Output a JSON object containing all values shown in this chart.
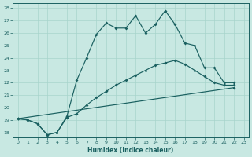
{
  "xlabel": "Humidex (Indice chaleur)",
  "bg_color": "#c8e8e2",
  "line_color": "#1a6060",
  "grid_color": "#a8d4cc",
  "ylim": [
    17.6,
    28.4
  ],
  "xlim": [
    -0.5,
    23.5
  ],
  "ytick_vals": [
    18,
    19,
    20,
    21,
    22,
    23,
    24,
    25,
    26,
    27,
    28
  ],
  "xtick_vals": [
    0,
    1,
    2,
    3,
    4,
    5,
    6,
    7,
    8,
    9,
    10,
    11,
    12,
    13,
    14,
    15,
    16,
    17,
    18,
    19,
    20,
    21,
    22,
    23
  ],
  "line1_x": [
    0,
    1,
    2,
    3,
    4,
    5,
    6,
    7,
    8,
    9,
    10,
    11,
    12,
    13,
    14,
    15,
    16,
    17,
    18,
    19,
    20,
    21,
    22
  ],
  "line1_y": [
    19.1,
    19.0,
    18.7,
    17.8,
    18.0,
    19.3,
    22.2,
    24.0,
    25.9,
    26.8,
    26.4,
    26.4,
    27.4,
    26.0,
    26.7,
    27.8,
    26.7,
    25.2,
    25.0,
    23.2,
    23.2,
    22.0,
    22.0
  ],
  "line2_x": [
    0,
    1,
    2,
    3,
    4,
    5,
    6,
    7,
    8,
    9,
    10,
    11,
    12,
    13,
    14,
    15,
    16,
    17,
    18,
    19,
    20,
    21,
    22
  ],
  "line2_y": [
    19.1,
    19.0,
    18.7,
    17.8,
    18.0,
    19.2,
    19.5,
    20.2,
    20.8,
    21.3,
    21.8,
    22.2,
    22.6,
    23.0,
    23.4,
    23.6,
    23.8,
    23.5,
    23.0,
    22.5,
    22.0,
    21.8,
    21.8
  ],
  "line3_x": [
    0,
    22
  ],
  "line3_y": [
    19.1,
    21.6
  ]
}
